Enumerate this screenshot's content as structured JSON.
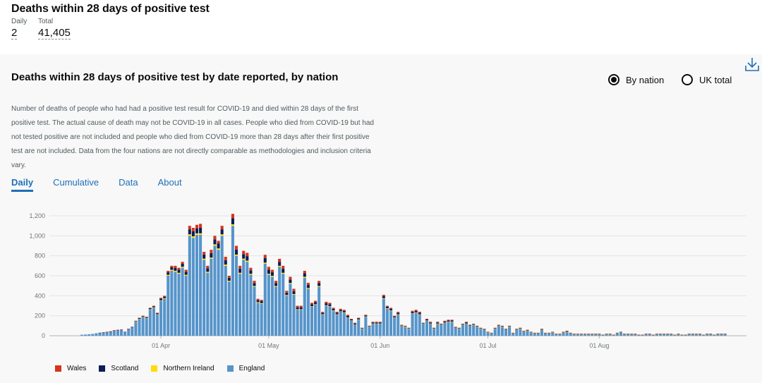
{
  "headline": {
    "title": "Deaths within 28 days of positive test",
    "daily_label": "Daily",
    "daily_value": "2",
    "total_label": "Total",
    "total_value": "41,405"
  },
  "card": {
    "title": "Deaths within 28 days of positive test by date reported, by nation",
    "description": "Number of deaths of people who had had a positive test result for COVID-19 and died within 28 days of the first positive test. The actual cause of death may not be COVID-19 in all cases. People who died from COVID-19 but had not tested positive are not included and people who died from COVID-19 more than 28 days after their first positive test are not included. Data from the four nations are not directly comparable as methodologies and inclusion criteria vary.",
    "radios": [
      {
        "label": "By nation",
        "selected": true
      },
      {
        "label": "UK total",
        "selected": false
      }
    ],
    "tabs": [
      {
        "label": "Daily",
        "active": true
      },
      {
        "label": "Cumulative",
        "active": false
      },
      {
        "label": "Data",
        "active": false
      },
      {
        "label": "About",
        "active": false
      }
    ],
    "download_icon": "download-icon"
  },
  "colors": {
    "England": "#5694ca",
    "Northern Ireland": "#ffdd00",
    "Scotland": "#0b1d55",
    "Wales": "#d4351c"
  },
  "chart_data": {
    "type": "bar",
    "stacked": true,
    "start_date": "2020-03-10",
    "x_tick_labels": [
      "01 Apr",
      "01 May",
      "01 Jun",
      "01 Jul",
      "01 Aug"
    ],
    "x_tick_dates": [
      "2020-04-01",
      "2020-05-01",
      "2020-06-01",
      "2020-07-01",
      "2020-08-01"
    ],
    "y_ticks": [
      0,
      200,
      400,
      600,
      800,
      1000,
      1200
    ],
    "y_tick_labels": [
      "0",
      "200",
      "400",
      "600",
      "800",
      "1,000",
      "1,200"
    ],
    "ylim": [
      0,
      1200
    ],
    "grid": true,
    "legend": {
      "position": "bottom-left",
      "entries": [
        "Wales",
        "Scotland",
        "Northern Ireland",
        "England"
      ]
    },
    "totals": [
      10,
      12,
      15,
      18,
      25,
      30,
      35,
      40,
      45,
      55,
      60,
      62,
      40,
      70,
      90,
      150,
      180,
      200,
      190,
      280,
      300,
      230,
      380,
      400,
      650,
      700,
      700,
      680,
      740,
      660,
      1100,
      1080,
      1110,
      1120,
      840,
      700,
      860,
      1000,
      950,
      1100,
      790,
      600,
      1220,
      900,
      700,
      850,
      830,
      680,
      550,
      370,
      360,
      810,
      690,
      660,
      550,
      770,
      700,
      450,
      590,
      470,
      300,
      300,
      650,
      530,
      330,
      350,
      550,
      240,
      340,
      330,
      280,
      240,
      270,
      260,
      210,
      170,
      130,
      180,
      80,
      210,
      100,
      140,
      140,
      140,
      410,
      300,
      280,
      200,
      240,
      110,
      100,
      80,
      250,
      260,
      240,
      130,
      170,
      140,
      80,
      140,
      120,
      150,
      160,
      160,
      90,
      80,
      120,
      140,
      110,
      120,
      100,
      80,
      70,
      40,
      30,
      80,
      110,
      100,
      70,
      100,
      30,
      70,
      80,
      50,
      60,
      40,
      30,
      30,
      70,
      30,
      30,
      40,
      20,
      20,
      40,
      50,
      30,
      20,
      20,
      20,
      20,
      20,
      20,
      20,
      20,
      10,
      20,
      20,
      10,
      30,
      40,
      20,
      20,
      20,
      20,
      10,
      10,
      20,
      20,
      10,
      20,
      20,
      20,
      20,
      20,
      10,
      20,
      10,
      10,
      20,
      20,
      20,
      20,
      10,
      20,
      20,
      10,
      20,
      20,
      20
    ],
    "series": [
      {
        "name": "England",
        "values": [
          10,
          12,
          15,
          18,
          25,
          28,
          32,
          36,
          40,
          50,
          55,
          58,
          38,
          65,
          85,
          140,
          165,
          185,
          175,
          260,
          280,
          210,
          350,
          370,
          600,
          650,
          640,
          620,
          680,
          600,
          1000,
          980,
          1010,
          1010,
          760,
          630,
          770,
          900,
          860,
          1000,
          700,
          540,
          1100,
          800,
          620,
          760,
          740,
          610,
          490,
          330,
          320,
          720,
          610,
          590,
          490,
          690,
          620,
          400,
          520,
          410,
          260,
          260,
          580,
          470,
          290,
          310,
          490,
          210,
          300,
          290,
          250,
          210,
          240,
          230,
          180,
          150,
          110,
          160,
          70,
          190,
          90,
          120,
          120,
          120,
          370,
          270,
          250,
          180,
          210,
          100,
          90,
          70,
          220,
          230,
          210,
          120,
          150,
          120,
          70,
          120,
          110,
          130,
          140,
          140,
          80,
          70,
          110,
          120,
          100,
          110,
          90,
          70,
          60,
          35,
          25,
          70,
          100,
          90,
          60,
          90,
          25,
          60,
          70,
          45,
          50,
          35,
          25,
          25,
          60,
          25,
          25,
          35,
          15,
          15,
          35,
          40,
          25,
          15,
          15,
          15,
          15,
          15,
          15,
          15,
          15,
          8,
          15,
          15,
          8,
          25,
          35,
          15,
          15,
          15,
          15,
          8,
          8,
          15,
          15,
          8,
          15,
          15,
          15,
          15,
          15,
          8,
          15,
          8,
          8,
          15,
          15,
          15,
          15,
          8,
          15,
          15,
          8,
          15,
          15,
          15
        ]
      },
      {
        "name": "Northern Ireland",
        "values": [
          0,
          0,
          0,
          0,
          0,
          0,
          0,
          0,
          0,
          0,
          0,
          0,
          0,
          0,
          0,
          2,
          3,
          3,
          3,
          5,
          4,
          4,
          5,
          6,
          10,
          10,
          10,
          10,
          10,
          10,
          15,
          15,
          15,
          15,
          12,
          10,
          12,
          15,
          14,
          15,
          12,
          10,
          15,
          12,
          10,
          12,
          12,
          10,
          8,
          6,
          6,
          12,
          10,
          10,
          8,
          10,
          10,
          7,
          8,
          7,
          5,
          5,
          10,
          8,
          5,
          5,
          8,
          4,
          5,
          5,
          4,
          4,
          4,
          4,
          3,
          3,
          2,
          3,
          1,
          3,
          1,
          2,
          2,
          2,
          6,
          5,
          4,
          3,
          4,
          2,
          2,
          1,
          4,
          4,
          4,
          2,
          3,
          2,
          1,
          2,
          2,
          2,
          2,
          2,
          1,
          1,
          2,
          2,
          1,
          2,
          1,
          1,
          1,
          1,
          1,
          1,
          2,
          2,
          1,
          2,
          1,
          1,
          1,
          1,
          1,
          1,
          1,
          1,
          1,
          1,
          1,
          1,
          1,
          1,
          1,
          1,
          1,
          1,
          1,
          1,
          1,
          1,
          1,
          1,
          1,
          1,
          1,
          1,
          1,
          1,
          1,
          1,
          1,
          1,
          1,
          1,
          1,
          1,
          1,
          1,
          1,
          1,
          1,
          1,
          1,
          1,
          1,
          1,
          1,
          1,
          1,
          1,
          1,
          1,
          1,
          1,
          1,
          1,
          1,
          1,
          1,
          1,
          1,
          1,
          1,
          1,
          1,
          1,
          1,
          1
        ]
      },
      {
        "name": "Scotland",
        "values": [
          0,
          0,
          0,
          0,
          0,
          2,
          2,
          2,
          3,
          3,
          3,
          2,
          1,
          3,
          3,
          5,
          8,
          8,
          8,
          10,
          10,
          10,
          15,
          15,
          25,
          25,
          30,
          30,
          30,
          30,
          50,
          50,
          50,
          55,
          40,
          35,
          45,
          50,
          50,
          50,
          45,
          30,
          60,
          50,
          40,
          45,
          45,
          35,
          30,
          20,
          20,
          45,
          40,
          35,
          30,
          40,
          40,
          25,
          35,
          30,
          20,
          20,
          35,
          30,
          20,
          20,
          30,
          15,
          20,
          20,
          15,
          15,
          15,
          15,
          15,
          10,
          10,
          10,
          5,
          10,
          5,
          10,
          10,
          10,
          20,
          15,
          15,
          10,
          15,
          5,
          5,
          5,
          15,
          15,
          15,
          5,
          10,
          10,
          5,
          10,
          5,
          10,
          10,
          10,
          5,
          5,
          5,
          10,
          5,
          5,
          5,
          5,
          5,
          2,
          2,
          5,
          5,
          5,
          5,
          5,
          2,
          5,
          5,
          2,
          5,
          2,
          2,
          2,
          5,
          2,
          2,
          2,
          2,
          2,
          2,
          5,
          2,
          2,
          2,
          2,
          2,
          2,
          2,
          2,
          2,
          1,
          2,
          2,
          1,
          2,
          2,
          2,
          2,
          2,
          2,
          1,
          1,
          2,
          2,
          1,
          2,
          2,
          2,
          2,
          2,
          1,
          2,
          1,
          1,
          2,
          2,
          2,
          2,
          1,
          2,
          2,
          1,
          2,
          2,
          2
        ]
      },
      {
        "name": "Wales",
        "values": [
          0,
          0,
          0,
          0,
          0,
          0,
          1,
          2,
          2,
          2,
          2,
          2,
          1,
          2,
          2,
          3,
          4,
          4,
          4,
          5,
          6,
          6,
          10,
          9,
          15,
          15,
          20,
          20,
          20,
          20,
          35,
          35,
          35,
          40,
          28,
          25,
          33,
          35,
          26,
          35,
          33,
          20,
          45,
          38,
          30,
          33,
          33,
          25,
          22,
          14,
          14,
          33,
          30,
          25,
          22,
          30,
          30,
          18,
          27,
          23,
          15,
          15,
          25,
          22,
          15,
          15,
          21,
          10,
          15,
          15,
          11,
          11,
          11,
          11,
          12,
          7,
          8,
          7,
          4,
          7,
          4,
          8,
          8,
          8,
          14,
          10,
          11,
          7,
          10,
          3,
          3,
          4,
          11,
          11,
          11,
          3,
          7,
          8,
          4,
          8,
          3,
          8,
          8,
          8,
          4,
          4,
          3,
          8,
          4,
          3,
          4,
          4,
          4,
          2,
          2,
          4,
          3,
          3,
          4,
          3,
          2,
          4,
          4,
          2,
          4,
          2,
          2,
          2,
          4,
          2,
          2,
          2,
          2,
          2,
          2,
          4,
          2,
          2,
          2,
          2,
          2,
          2,
          2,
          2,
          2,
          1,
          2,
          2,
          1,
          2,
          2,
          2,
          2,
          2,
          2,
          1,
          1,
          2,
          2,
          1,
          2,
          2,
          2,
          2,
          2,
          1,
          2,
          1,
          1,
          2,
          2,
          2,
          2,
          1,
          2,
          2,
          1,
          2,
          2,
          2
        ]
      }
    ]
  }
}
